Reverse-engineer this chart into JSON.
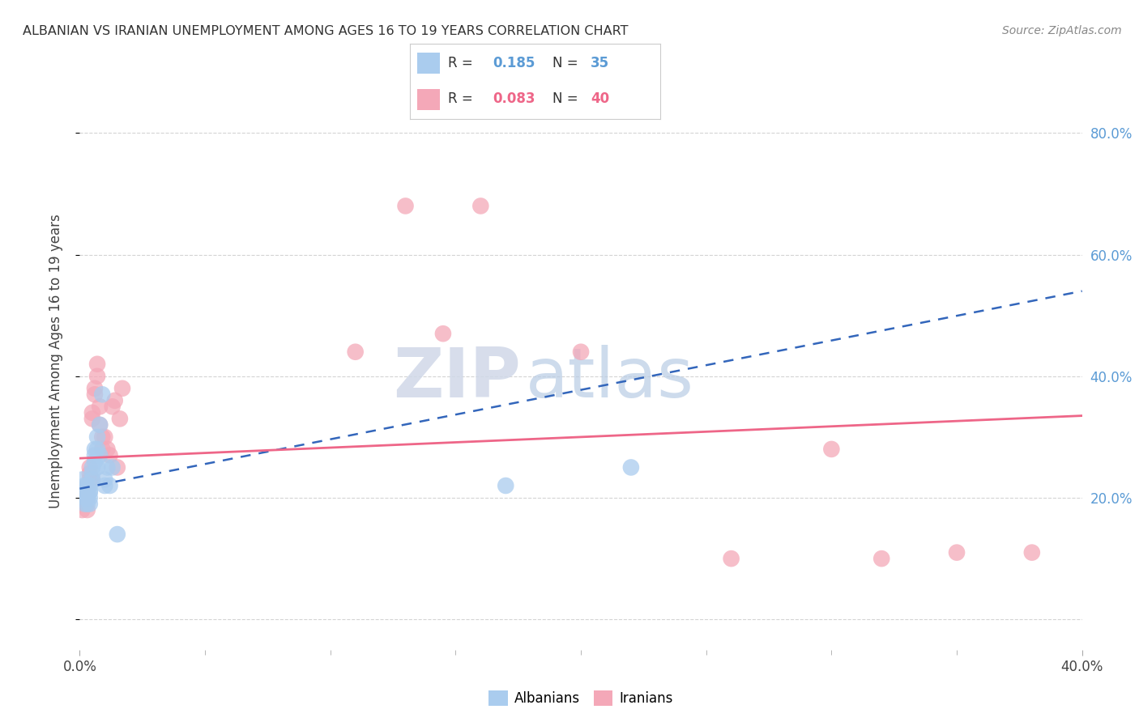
{
  "title": "ALBANIAN VS IRANIAN UNEMPLOYMENT AMONG AGES 16 TO 19 YEARS CORRELATION CHART",
  "source": "Source: ZipAtlas.com",
  "ylabel": "Unemployment Among Ages 16 to 19 years",
  "xlim": [
    0.0,
    0.4
  ],
  "ylim": [
    -0.05,
    0.9
  ],
  "xtick_positions": [
    0.0,
    0.4
  ],
  "xtick_labels": [
    "0.0%",
    "40.0%"
  ],
  "yticks": [
    0.0,
    0.2,
    0.4,
    0.6,
    0.8
  ],
  "right_ytick_labels": [
    "",
    "20.0%",
    "40.0%",
    "60.0%",
    "80.0%"
  ],
  "background_color": "#ffffff",
  "grid_color": "#d0d0d0",
  "albanian_color": "#aaccee",
  "iranian_color": "#f4a8b8",
  "albanian_line_color": "#3366bb",
  "iranian_line_color": "#ee6688",
  "albanian_R": 0.185,
  "albanian_N": 35,
  "iranian_R": 0.083,
  "iranian_N": 40,
  "watermark_zip": "ZIP",
  "watermark_atlas": "atlas",
  "albanian_x": [
    0.001,
    0.001,
    0.002,
    0.002,
    0.002,
    0.002,
    0.003,
    0.003,
    0.003,
    0.003,
    0.004,
    0.004,
    0.004,
    0.004,
    0.004,
    0.005,
    0.005,
    0.005,
    0.006,
    0.006,
    0.006,
    0.007,
    0.007,
    0.007,
    0.008,
    0.008,
    0.009,
    0.01,
    0.01,
    0.011,
    0.012,
    0.013,
    0.015,
    0.17,
    0.22
  ],
  "albanian_y": [
    0.23,
    0.21,
    0.22,
    0.21,
    0.2,
    0.19,
    0.22,
    0.21,
    0.2,
    0.19,
    0.22,
    0.21,
    0.21,
    0.2,
    0.19,
    0.25,
    0.24,
    0.23,
    0.28,
    0.27,
    0.26,
    0.3,
    0.28,
    0.25,
    0.32,
    0.27,
    0.37,
    0.23,
    0.22,
    0.25,
    0.22,
    0.25,
    0.14,
    0.22,
    0.25
  ],
  "iranian_x": [
    0.001,
    0.001,
    0.002,
    0.002,
    0.003,
    0.003,
    0.003,
    0.003,
    0.004,
    0.004,
    0.004,
    0.005,
    0.005,
    0.005,
    0.006,
    0.006,
    0.007,
    0.007,
    0.008,
    0.008,
    0.009,
    0.009,
    0.01,
    0.011,
    0.012,
    0.013,
    0.014,
    0.015,
    0.016,
    0.017,
    0.11,
    0.13,
    0.145,
    0.16,
    0.2,
    0.26,
    0.3,
    0.32,
    0.35,
    0.38
  ],
  "iranian_y": [
    0.2,
    0.18,
    0.21,
    0.19,
    0.22,
    0.21,
    0.2,
    0.18,
    0.25,
    0.24,
    0.23,
    0.34,
    0.33,
    0.23,
    0.38,
    0.37,
    0.4,
    0.42,
    0.35,
    0.32,
    0.3,
    0.28,
    0.3,
    0.28,
    0.27,
    0.35,
    0.36,
    0.25,
    0.33,
    0.38,
    0.44,
    0.68,
    0.47,
    0.68,
    0.44,
    0.1,
    0.28,
    0.1,
    0.11,
    0.11
  ],
  "alb_line_x": [
    0.0,
    0.4
  ],
  "alb_line_y": [
    0.215,
    0.54
  ],
  "ira_line_x": [
    0.0,
    0.4
  ],
  "ira_line_y": [
    0.265,
    0.335
  ]
}
